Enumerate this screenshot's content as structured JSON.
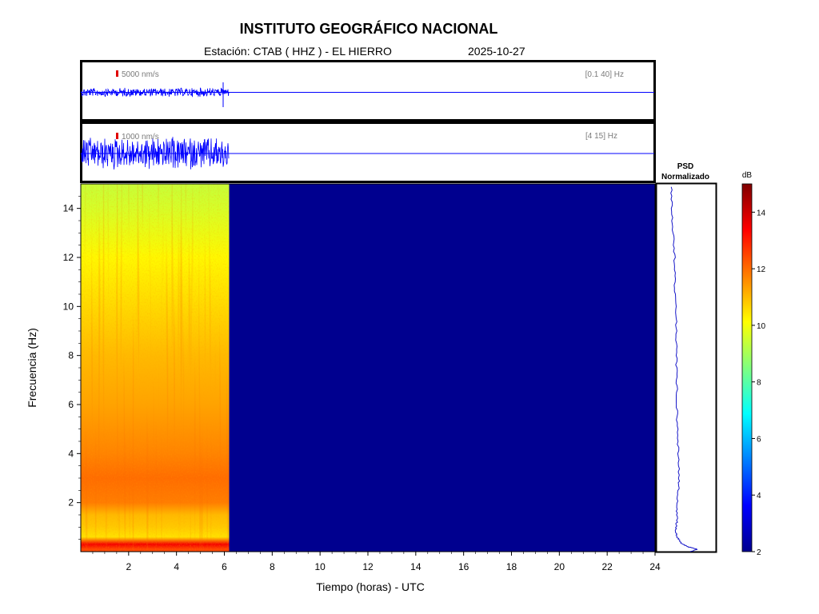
{
  "header": {
    "title": "INSTITUTO GEOGRÁFICO NACIONAL",
    "station": "Estación:  CTAB ( HHZ ) - EL HIERRO",
    "date": "2025-10-27"
  },
  "colors": {
    "trace": "#0000ff",
    "background_spectrogram": "#00008f",
    "psd_line": "#1515c8",
    "scale_marker": "#e00000"
  },
  "chart_data": [
    {
      "type": "line",
      "name": "broadband-seismogram",
      "scale_label": "5000 nm/s",
      "band_label": "[0.1 40] Hz",
      "x_range": [
        0,
        24
      ],
      "data_until_hour": 6.2,
      "spike_hour": 5.95
    },
    {
      "type": "line",
      "name": "filtered-seismogram",
      "scale_label": "1000 nm/s",
      "band_label": "[4 15] Hz",
      "x_range": [
        0,
        24
      ],
      "data_until_hour": 6.2
    },
    {
      "type": "heatmap",
      "name": "spectrogram",
      "xlabel": "Tiempo (horas) - UTC",
      "ylabel": "Frecuencia  (Hz)",
      "xlim": [
        0,
        24
      ],
      "ylim": [
        0,
        15
      ],
      "xticks": [
        2,
        4,
        6,
        8,
        10,
        12,
        14,
        16,
        18,
        20,
        22,
        24
      ],
      "yticks": [
        2,
        4,
        6,
        8,
        10,
        12,
        14
      ],
      "data_until_hour": 6.2,
      "profile_db": [
        {
          "f": 0.1,
          "db": 12.5
        },
        {
          "f": 0.3,
          "db": 13.5
        },
        {
          "f": 0.6,
          "db": 10.5
        },
        {
          "f": 1.0,
          "db": 10.8
        },
        {
          "f": 1.5,
          "db": 11.0
        },
        {
          "f": 2.0,
          "db": 11.8
        },
        {
          "f": 3.0,
          "db": 12.0
        },
        {
          "f": 4.0,
          "db": 11.7
        },
        {
          "f": 6.0,
          "db": 11.3
        },
        {
          "f": 8.0,
          "db": 11.0
        },
        {
          "f": 10.0,
          "db": 10.6
        },
        {
          "f": 12.0,
          "db": 10.2
        },
        {
          "f": 14.0,
          "db": 9.6
        },
        {
          "f": 15.0,
          "db": 9.4
        }
      ]
    },
    {
      "type": "line",
      "name": "psd-normalizado",
      "title_line1": "PSD",
      "title_line2": "Normalizado",
      "ylim": [
        0,
        15
      ],
      "profile": [
        {
          "f": 0.0,
          "v": 0.37
        },
        {
          "f": 0.1,
          "v": 0.49
        },
        {
          "f": 0.2,
          "v": 0.32
        },
        {
          "f": 0.35,
          "v": 0.2
        },
        {
          "f": 0.6,
          "v": 0.12
        },
        {
          "f": 0.9,
          "v": 0.1
        },
        {
          "f": 1.2,
          "v": 0.12
        },
        {
          "f": 1.8,
          "v": 0.12
        },
        {
          "f": 2.5,
          "v": 0.15
        },
        {
          "f": 3.0,
          "v": 0.16
        },
        {
          "f": 4.0,
          "v": 0.15
        },
        {
          "f": 5.0,
          "v": 0.13
        },
        {
          "f": 6.0,
          "v": 0.12
        },
        {
          "f": 7.0,
          "v": 0.12
        },
        {
          "f": 8.0,
          "v": 0.11
        },
        {
          "f": 9.0,
          "v": 0.11
        },
        {
          "f": 10.0,
          "v": 0.1
        },
        {
          "f": 11.0,
          "v": 0.08
        },
        {
          "f": 12.0,
          "v": 0.08
        },
        {
          "f": 13.0,
          "v": 0.05
        },
        {
          "f": 14.0,
          "v": 0.03
        },
        {
          "f": 15.0,
          "v": 0.02
        }
      ]
    },
    {
      "type": "heatmap",
      "name": "colorbar",
      "label": "dB",
      "range": [
        2,
        15
      ],
      "ticks": [
        "2",
        "4",
        "6",
        "8",
        "10",
        "12",
        "14"
      ]
    }
  ]
}
